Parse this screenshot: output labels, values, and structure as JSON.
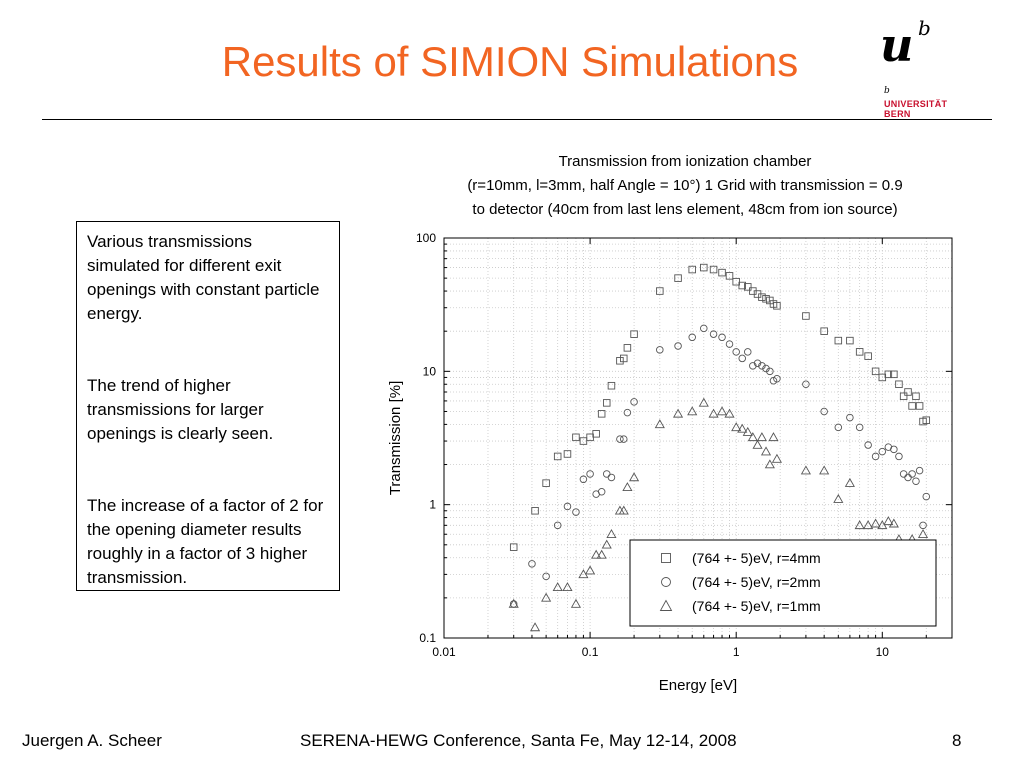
{
  "slide": {
    "title": "Results of SIMION Simulations",
    "logo": {
      "mark": "u",
      "superscript": "b",
      "small_b": "b",
      "line1": "UNIVERSITÄT",
      "line2": "BERN",
      "color": "#c8102e"
    },
    "textbox": {
      "p1": "Various transmissions simulated for different exit openings with constant particle energy.",
      "p2": "The trend of higher transmissions for larger openings is clearly seen.",
      "p3": "The increase of a factor of 2 for the opening diameter results roughly in a factor of 3 higher transmission."
    },
    "footer": {
      "author": "Juergen A. Scheer",
      "conference": "SERENA-HEWG Conference, Santa Fe, May 12-14, 2008",
      "page": "8"
    },
    "title_color": "#f26522"
  },
  "chart_data": {
    "type": "scatter",
    "title_lines": [
      "Transmission from ionization chamber",
      "(r=10mm, l=3mm, half Angle = 10°) 1 Grid with transmission = 0.9",
      "to detector (40cm from last lens element, 48cm from ion source)"
    ],
    "xlabel": "Energy [eV]",
    "ylabel": "Transmission [%]",
    "xscale": "log",
    "yscale": "log",
    "xlim": [
      0.01,
      30
    ],
    "ylim": [
      0.1,
      100
    ],
    "xticks": [
      "0.01",
      "0.1",
      "1",
      "10"
    ],
    "yticks": [
      "0.1",
      "1",
      "10",
      "100"
    ],
    "grid": true,
    "legend_position": "bottom-right",
    "series": [
      {
        "name": "(764 +- 5)eV, r=4mm",
        "marker": "square",
        "points": [
          [
            0.03,
            0.48
          ],
          [
            0.042,
            0.9
          ],
          [
            0.05,
            1.45
          ],
          [
            0.06,
            2.3
          ],
          [
            0.07,
            2.4
          ],
          [
            0.08,
            3.2
          ],
          [
            0.09,
            3.0
          ],
          [
            0.1,
            3.2
          ],
          [
            0.11,
            3.4
          ],
          [
            0.12,
            4.8
          ],
          [
            0.13,
            5.8
          ],
          [
            0.14,
            7.8
          ],
          [
            0.16,
            12
          ],
          [
            0.17,
            12.5
          ],
          [
            0.18,
            15
          ],
          [
            0.2,
            19
          ],
          [
            0.3,
            40
          ],
          [
            0.4,
            50
          ],
          [
            0.5,
            58
          ],
          [
            0.6,
            60
          ],
          [
            0.7,
            58
          ],
          [
            0.8,
            55
          ],
          [
            0.9,
            52
          ],
          [
            1.0,
            47
          ],
          [
            1.1,
            44
          ],
          [
            1.2,
            43
          ],
          [
            1.3,
            40
          ],
          [
            1.4,
            38
          ],
          [
            1.5,
            36
          ],
          [
            1.6,
            35
          ],
          [
            1.7,
            34
          ],
          [
            1.8,
            32
          ],
          [
            1.9,
            31
          ],
          [
            3,
            26
          ],
          [
            4,
            20
          ],
          [
            5,
            17
          ],
          [
            6,
            17
          ],
          [
            7,
            14
          ],
          [
            8,
            13
          ],
          [
            9,
            10
          ],
          [
            10,
            9
          ],
          [
            11,
            9.5
          ],
          [
            12,
            9.5
          ],
          [
            13,
            8
          ],
          [
            14,
            6.5
          ],
          [
            15,
            7
          ],
          [
            16,
            5.5
          ],
          [
            17,
            6.5
          ],
          [
            18,
            5.5
          ],
          [
            19,
            4.2
          ],
          [
            20,
            4.3
          ]
        ]
      },
      {
        "name": "(764 +- 5)eV, r=2mm",
        "marker": "circle",
        "points": [
          [
            0.03,
            0.18
          ],
          [
            0.04,
            0.36
          ],
          [
            0.05,
            0.29
          ],
          [
            0.06,
            0.7
          ],
          [
            0.07,
            0.97
          ],
          [
            0.08,
            0.88
          ],
          [
            0.09,
            1.55
          ],
          [
            0.1,
            1.7
          ],
          [
            0.11,
            1.2
          ],
          [
            0.12,
            1.25
          ],
          [
            0.13,
            1.7
          ],
          [
            0.14,
            1.6
          ],
          [
            0.16,
            3.1
          ],
          [
            0.17,
            3.1
          ],
          [
            0.18,
            4.9
          ],
          [
            0.2,
            5.9
          ],
          [
            0.3,
            14.5
          ],
          [
            0.4,
            15.5
          ],
          [
            0.5,
            18
          ],
          [
            0.6,
            21
          ],
          [
            0.7,
            19
          ],
          [
            0.8,
            18
          ],
          [
            0.9,
            16
          ],
          [
            1.0,
            14
          ],
          [
            1.1,
            12.5
          ],
          [
            1.2,
            14
          ],
          [
            1.3,
            11
          ],
          [
            1.4,
            11.5
          ],
          [
            1.5,
            11
          ],
          [
            1.6,
            10.5
          ],
          [
            1.7,
            10
          ],
          [
            1.8,
            8.5
          ],
          [
            1.9,
            8.8
          ],
          [
            3,
            8
          ],
          [
            4,
            5
          ],
          [
            5,
            3.8
          ],
          [
            6,
            4.5
          ],
          [
            7,
            3.8
          ],
          [
            8,
            2.8
          ],
          [
            9,
            2.3
          ],
          [
            10,
            2.5
          ],
          [
            11,
            2.7
          ],
          [
            12,
            2.6
          ],
          [
            13,
            2.3
          ],
          [
            14,
            1.7
          ],
          [
            15,
            1.6
          ],
          [
            16,
            1.7
          ],
          [
            17,
            1.5
          ],
          [
            18,
            1.8
          ],
          [
            19,
            0.7
          ],
          [
            20,
            1.15
          ]
        ]
      },
      {
        "name": "(764 +- 5)eV, r=1mm",
        "marker": "triangle",
        "points": [
          [
            0.03,
            0.18
          ],
          [
            0.042,
            0.12
          ],
          [
            0.05,
            0.2
          ],
          [
            0.06,
            0.24
          ],
          [
            0.07,
            0.24
          ],
          [
            0.08,
            0.18
          ],
          [
            0.09,
            0.3
          ],
          [
            0.1,
            0.32
          ],
          [
            0.11,
            0.42
          ],
          [
            0.12,
            0.42
          ],
          [
            0.13,
            0.5
          ],
          [
            0.14,
            0.6
          ],
          [
            0.16,
            0.9
          ],
          [
            0.17,
            0.9
          ],
          [
            0.18,
            1.35
          ],
          [
            0.2,
            1.6
          ],
          [
            0.3,
            4
          ],
          [
            0.4,
            4.8
          ],
          [
            0.5,
            5
          ],
          [
            0.6,
            5.8
          ],
          [
            0.7,
            4.8
          ],
          [
            0.8,
            5
          ],
          [
            0.9,
            4.8
          ],
          [
            1.0,
            3.8
          ],
          [
            1.1,
            3.7
          ],
          [
            1.2,
            3.5
          ],
          [
            1.3,
            3.2
          ],
          [
            1.4,
            2.8
          ],
          [
            1.5,
            3.2
          ],
          [
            1.6,
            2.5
          ],
          [
            1.7,
            2.0
          ],
          [
            1.8,
            3.2
          ],
          [
            1.9,
            2.2
          ],
          [
            3,
            1.8
          ],
          [
            4,
            1.8
          ],
          [
            5,
            1.1
          ],
          [
            6,
            1.45
          ],
          [
            7,
            0.7
          ],
          [
            8,
            0.7
          ],
          [
            9,
            0.72
          ],
          [
            10,
            0.7
          ],
          [
            11,
            0.75
          ],
          [
            12,
            0.72
          ],
          [
            13,
            0.55
          ],
          [
            14,
            0.48
          ],
          [
            15,
            0.5
          ],
          [
            16,
            0.55
          ],
          [
            17,
            0.38
          ],
          [
            18,
            0.5
          ],
          [
            19,
            0.6
          ],
          [
            20,
            0.25
          ]
        ]
      }
    ]
  }
}
